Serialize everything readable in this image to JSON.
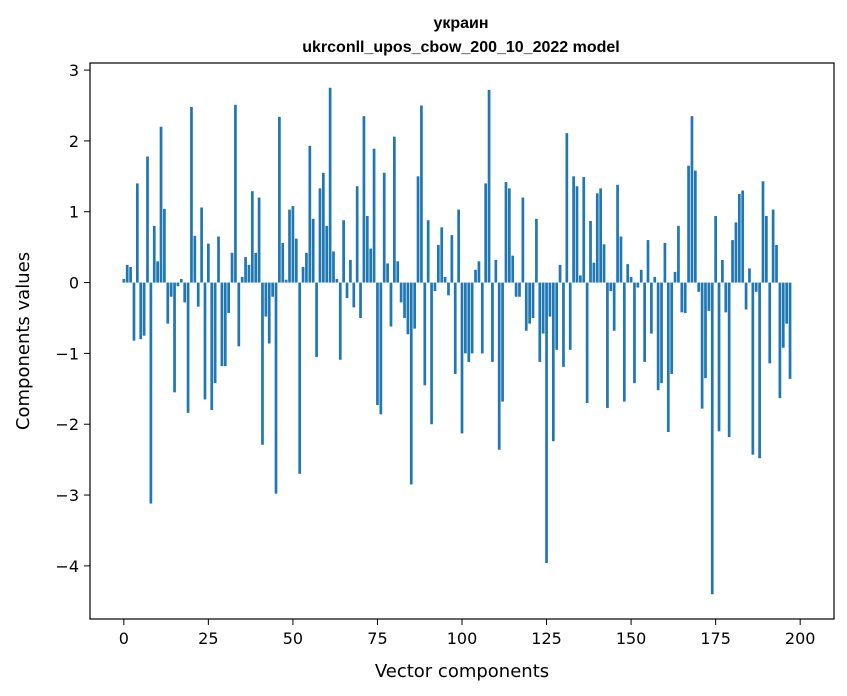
{
  "chart_data": {
    "type": "bar",
    "title": "украин",
    "subtitle": "ukrconll_upos_cbow_200_10_2022 model",
    "xlabel": "Vector components",
    "ylabel": "Components values",
    "xlim": [
      -10,
      210
    ],
    "ylim": [
      -4.75,
      3.1
    ],
    "xticks": [
      0,
      25,
      50,
      75,
      100,
      125,
      150,
      175,
      200
    ],
    "yticks": [
      -4,
      -3,
      -2,
      -1,
      0,
      1,
      2,
      3
    ],
    "xtick_labels": [
      "0",
      "25",
      "50",
      "75",
      "100",
      "125",
      "150",
      "175",
      "200"
    ],
    "ytick_labels": [
      "−4",
      "−3",
      "−2",
      "−1",
      "0",
      "1",
      "2",
      "3"
    ],
    "grid": false,
    "bar_color": "#1f77b4",
    "values": [
      0.05,
      0.25,
      0.22,
      -0.82,
      1.4,
      -0.8,
      -0.75,
      1.78,
      -3.12,
      0.8,
      0.3,
      2.2,
      1.04,
      -0.58,
      -0.2,
      -1.55,
      -0.05,
      0.05,
      -0.28,
      -1.84,
      2.48,
      0.66,
      -0.34,
      1.06,
      -1.65,
      0.55,
      -1.8,
      -1.42,
      0.65,
      -1.18,
      -1.18,
      -0.43,
      0.42,
      2.51,
      -0.9,
      0.08,
      0.36,
      0.25,
      1.29,
      0.42,
      1.2,
      -2.29,
      -0.48,
      -0.86,
      -0.2,
      -2.98,
      2.34,
      0.56,
      0.04,
      1.03,
      1.08,
      0.62,
      -2.7,
      0.22,
      0.42,
      1.93,
      0.9,
      -1.05,
      1.33,
      1.55,
      0.8,
      2.75,
      0.44,
      0.05,
      -1.09,
      0.88,
      -0.22,
      0.32,
      -0.35,
      1.36,
      -0.5,
      2.35,
      0.94,
      0.48,
      1.89,
      -1.73,
      -1.86,
      1.55,
      0.27,
      -0.62,
      2.06,
      0.3,
      -0.28,
      -0.5,
      -0.73,
      -2.85,
      -0.65,
      1.5,
      2.5,
      -1.45,
      0.88,
      -2.0,
      -0.12,
      0.53,
      0.78,
      0.08,
      -0.18,
      0.67,
      -1.29,
      1.03,
      -2.13,
      -1.0,
      -1.12,
      -1.0,
      0.18,
      0.3,
      -1.0,
      1.4,
      2.72,
      -1.12,
      0.32,
      -2.36,
      -1.68,
      1.42,
      1.33,
      0.38,
      -0.2,
      -0.2,
      1.2,
      -0.68,
      -0.58,
      -0.5,
      0.9,
      -1.12,
      -0.72,
      -3.96,
      -0.48,
      -2.24,
      -0.95,
      0.25,
      -1.19,
      2.11,
      -0.95,
      1.5,
      1.36,
      0.1,
      1.49,
      -1.7,
      0.87,
      0.28,
      1.26,
      1.33,
      0.54,
      -1.77,
      -0.12,
      -0.68,
      1.38,
      0.65,
      -1.68,
      0.26,
      0.08,
      -1.42,
      -0.07,
      0.18,
      -1.12,
      0.6,
      -0.72,
      0.08,
      -1.52,
      -1.42,
      0.56,
      -2.11,
      -1.29,
      0.15,
      0.8,
      -0.42,
      -0.43,
      1.65,
      2.35,
      1.58,
      -0.13,
      -1.78,
      -1.35,
      -0.4,
      -4.4,
      0.94,
      -2.1,
      0.32,
      -0.42,
      -2.18,
      0.6,
      0.85,
      1.25,
      1.3,
      -0.38,
      0.2,
      -2.43,
      -0.13,
      -2.48,
      1.43,
      0.94,
      -1.14,
      1.03,
      0.53,
      -1.63,
      -0.92,
      -0.58,
      -1.36
    ]
  }
}
